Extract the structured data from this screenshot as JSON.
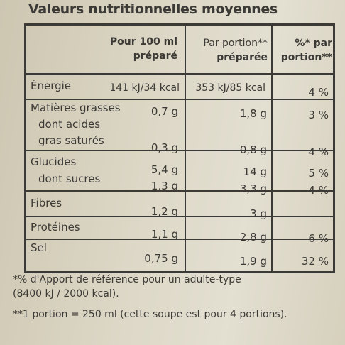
{
  "title": "Valeurs nutritionnelles moyennes",
  "headers": {
    "per100_line1": "Pour 100 ml",
    "per100_line2": "préparé",
    "portion_line1": "Par portion**",
    "portion_line2": "préparée",
    "ri_line1": "%* par",
    "ri_line2": "portion**"
  },
  "rows": {
    "energie": {
      "label": "Énergie",
      "per100": "141 kJ/34 kcal",
      "portion": "353 kJ/85 kcal",
      "ri": "4 %"
    },
    "matieres": {
      "label": "Matières grasses",
      "per100": "0,7 g",
      "portion": "1,8 g",
      "ri": "3 %"
    },
    "satures": {
      "label1": "dont acides",
      "label2": "gras saturés",
      "per100": "0,3 g",
      "portion": "0,8 g",
      "ri": "4 %"
    },
    "glucides": {
      "label": "Glucides",
      "per100": "5,4 g",
      "portion": "14 g",
      "ri": "5 %"
    },
    "sucres": {
      "label": "dont sucres",
      "per100": "1,3 g",
      "portion": "3,3 g",
      "ri": "4 %"
    },
    "fibres": {
      "label": "Fibres",
      "per100": "1,2 g",
      "portion": "3 g",
      "ri": ""
    },
    "proteines": {
      "label": "Protéines",
      "per100": "1,1 g",
      "portion": "2,8 g",
      "ri": "6 %"
    },
    "sel": {
      "label": "Sel",
      "per100": "0,75 g",
      "portion": "1,9 g",
      "ri": "32 %"
    }
  },
  "footnotes": {
    "ri_line1": "*% d'Apport de référence pour un adulte-type",
    "ri_line2": "(8400 kJ / 2000 kcal).",
    "portion": "**1 portion = 250 ml (cette soupe est pour 4 portions)."
  }
}
